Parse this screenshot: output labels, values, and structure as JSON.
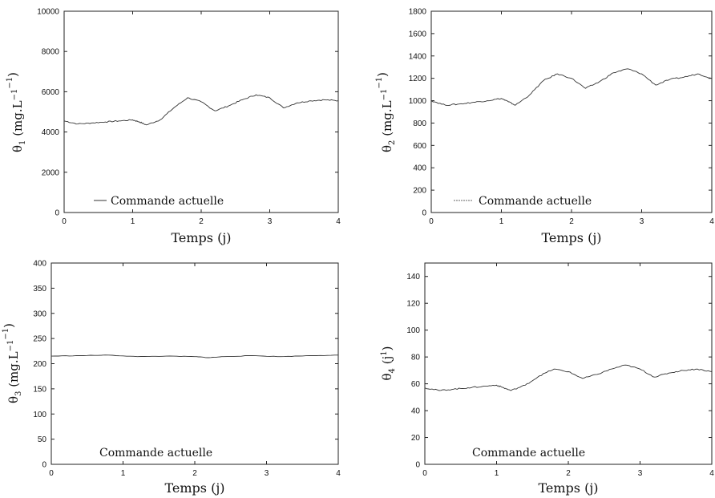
{
  "chart_data": [
    {
      "type": "line",
      "x": [
        0,
        0.2,
        0.4,
        0.6,
        0.8,
        1.0,
        1.1,
        1.2,
        1.4,
        1.6,
        1.8,
        2.0,
        2.2,
        2.4,
        2.6,
        2.8,
        3.0,
        3.2,
        3.4,
        3.6,
        3.8,
        4.0
      ],
      "series": [
        {
          "name": "Commande actuelle",
          "values": [
            4550,
            4400,
            4450,
            4500,
            4550,
            4600,
            4500,
            4350,
            4600,
            5200,
            5700,
            5500,
            5050,
            5300,
            5600,
            5850,
            5700,
            5200,
            5450,
            5550,
            5600,
            5550
          ]
        }
      ],
      "xlabel": "Temps (j)",
      "ylabel": {
        "symbol": "θ",
        "sub": "1",
        "unit": "(mg.L",
        "sup1": "−1",
        ".j": ".j",
        "sup2": "−1",
        "close": ")"
      },
      "xlim": [
        0,
        4
      ],
      "ylim": [
        0,
        10000
      ],
      "xticks": [
        "0",
        "1",
        "2",
        "3",
        "4"
      ],
      "yticks": [
        "0",
        "2000",
        "4000",
        "6000",
        "8000",
        "10000"
      ],
      "legend_text": "Commande actuelle",
      "legend_position": "bottom-left"
    },
    {
      "type": "line",
      "x": [
        0,
        0.2,
        0.4,
        0.6,
        0.8,
        1.0,
        1.1,
        1.2,
        1.4,
        1.6,
        1.8,
        2.0,
        2.2,
        2.4,
        2.6,
        2.8,
        3.0,
        3.2,
        3.4,
        3.6,
        3.8,
        4.0
      ],
      "series": [
        {
          "name": "Commande actuelle",
          "values": [
            1000,
            960,
            970,
            985,
            1000,
            1020,
            990,
            960,
            1050,
            1180,
            1240,
            1200,
            1110,
            1170,
            1250,
            1285,
            1240,
            1140,
            1190,
            1210,
            1240,
            1200
          ]
        }
      ],
      "xlabel": "Temps (j)",
      "ylabel": {
        "symbol": "θ",
        "sub": "2",
        "unit": "(mg.L",
        "sup1": "−1",
        ".j": ".j",
        "sup2": "−1",
        "close": ")"
      },
      "xlim": [
        0,
        4
      ],
      "ylim": [
        0,
        1800
      ],
      "xticks": [
        "0",
        "1",
        "2",
        "3",
        "4"
      ],
      "yticks": [
        "0",
        "200",
        "400",
        "600",
        "800",
        "1000",
        "1200",
        "1400",
        "1600",
        "1800"
      ],
      "legend_text": "Commande actuelle",
      "legend_position": "bottom-center"
    },
    {
      "type": "line",
      "x": [
        0,
        0.4,
        0.8,
        1.2,
        1.6,
        2.0,
        2.2,
        2.4,
        2.8,
        3.2,
        3.6,
        4.0
      ],
      "series": [
        {
          "name": "Commande actuelle",
          "values": [
            215,
            216,
            217,
            214,
            215,
            214,
            212,
            214,
            216,
            214,
            216,
            217
          ]
        }
      ],
      "xlabel": "Temps (j)",
      "ylabel": {
        "symbol": "θ",
        "sub": "3",
        "unit": "(mg.L",
        "sup1": "−1",
        ".j": ".j",
        "sup2": "−1",
        "close": ")"
      },
      "xlim": [
        0,
        4
      ],
      "ylim": [
        0,
        400
      ],
      "xticks": [
        "0",
        "1",
        "2",
        "3",
        "4"
      ],
      "yticks": [
        "0",
        "50",
        "100",
        "150",
        "200",
        "250",
        "300",
        "350",
        "400"
      ],
      "legend_text": "Commande actuelle",
      "legend_position": "bottom-center"
    },
    {
      "type": "line",
      "x": [
        0,
        0.2,
        0.4,
        0.6,
        0.8,
        1.0,
        1.1,
        1.2,
        1.4,
        1.6,
        1.8,
        2.0,
        2.2,
        2.4,
        2.6,
        2.8,
        3.0,
        3.2,
        3.4,
        3.6,
        3.8,
        4.0
      ],
      "series": [
        {
          "name": "Commande actuelle",
          "values": [
            57,
            55,
            56,
            57,
            58,
            59,
            57,
            55,
            59,
            66,
            71,
            69,
            64,
            67,
            71,
            74,
            71,
            65,
            68,
            70,
            71,
            69
          ]
        }
      ],
      "xlabel": "Temps (j)",
      "ylabel": {
        "symbol": "θ",
        "sub": "4",
        "unit": "(j",
        "sup1": "1",
        "close": ")"
      },
      "xlim": [
        0,
        4
      ],
      "ylim": [
        0,
        150
      ],
      "xticks": [
        "0",
        "1",
        "2",
        "3",
        "4"
      ],
      "yticks": [
        "0",
        "20",
        "40",
        "60",
        "80",
        "100",
        "120",
        "140"
      ],
      "legend_text": "Commande actuelle",
      "legend_position": "bottom-center"
    }
  ]
}
